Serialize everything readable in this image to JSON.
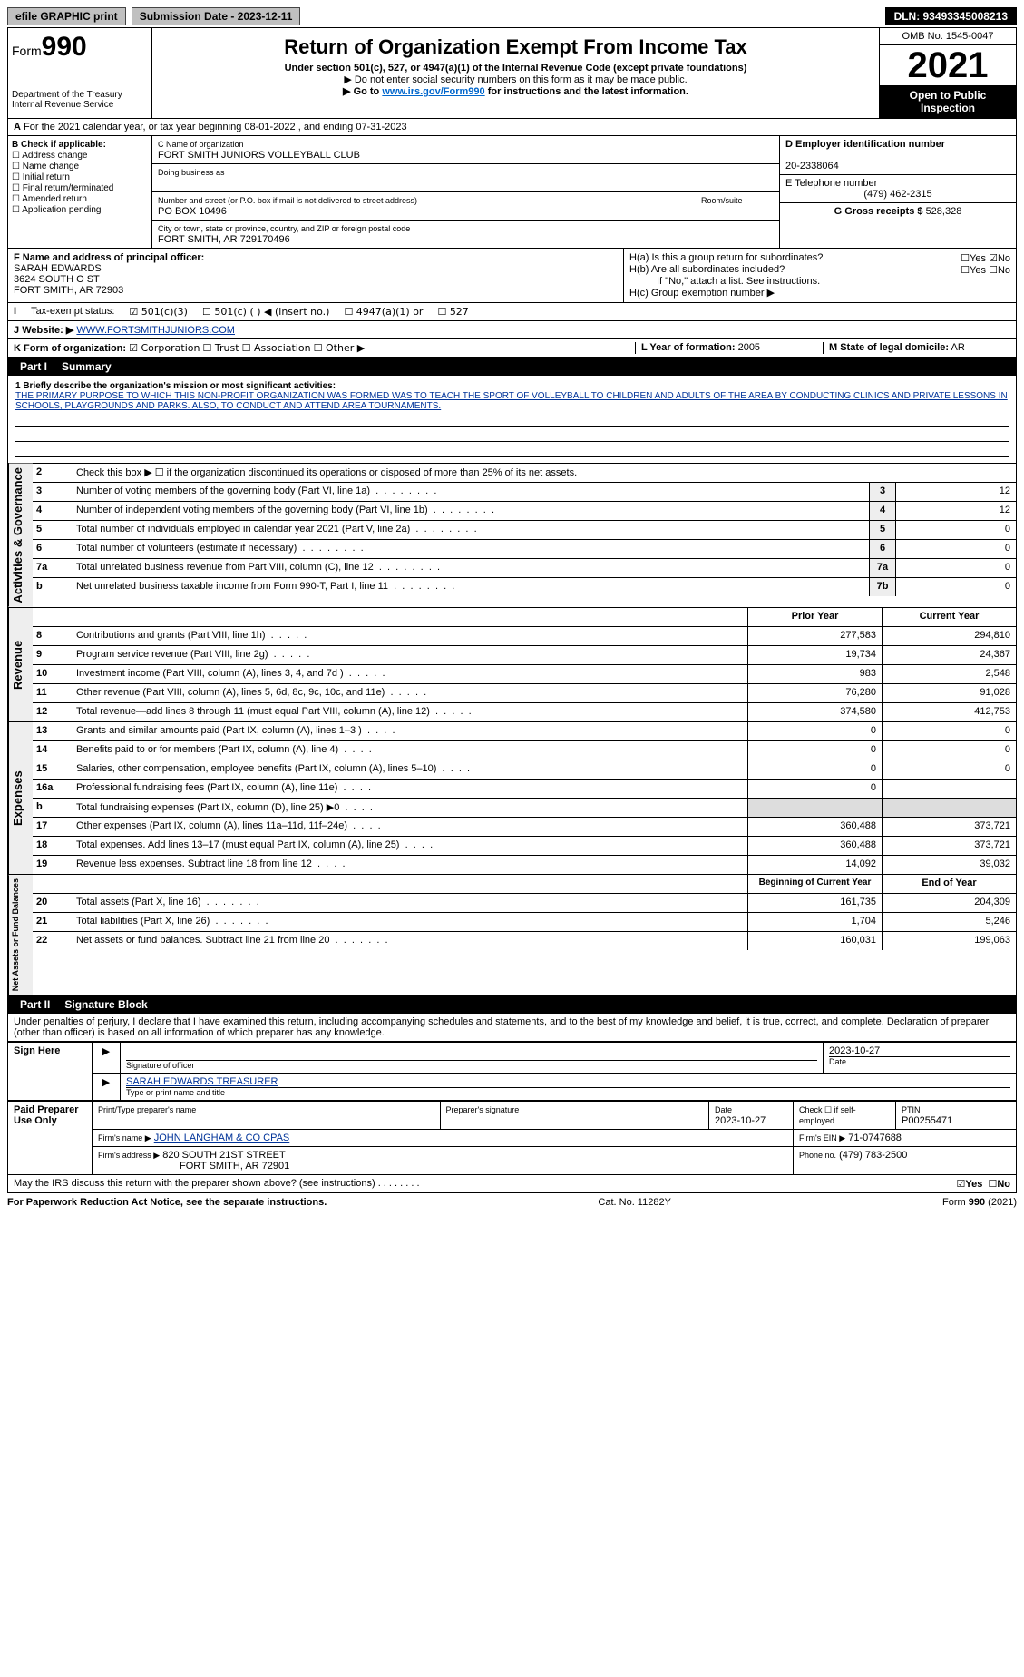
{
  "topbar": {
    "efile": "efile GRAPHIC print",
    "submission": "Submission Date - 2023-12-11",
    "dln": "DLN: 93493345008213"
  },
  "header": {
    "form": "Form",
    "formno": "990",
    "title": "Return of Organization Exempt From Income Tax",
    "sub1": "Under section 501(c), 527, or 4947(a)(1) of the Internal Revenue Code (except private foundations)",
    "sub2": "▶ Do not enter social security numbers on this form as it may be made public.",
    "sub3_pre": "▶ Go to ",
    "sub3_link": "www.irs.gov/Form990",
    "sub3_post": " for instructions and the latest information.",
    "dept": "Department of the Treasury",
    "irs": "Internal Revenue Service",
    "omb": "OMB No. 1545-0047",
    "year": "2021",
    "open": "Open to Public Inspection"
  },
  "rowA": "For the 2021 calendar year, or tax year beginning 08-01-2022    , and ending 07-31-2023",
  "boxB": {
    "label": "B Check if applicable:",
    "opts": [
      "Address change",
      "Name change",
      "Initial return",
      "Final return/terminated",
      "Amended return",
      "Application pending"
    ]
  },
  "boxC": {
    "lbl_name": "C Name of organization",
    "name": "FORT SMITH JUNIORS VOLLEYBALL CLUB",
    "dba_lbl": "Doing business as",
    "addr_lbl": "Number and street (or P.O. box if mail is not delivered to street address)",
    "room_lbl": "Room/suite",
    "addr": "PO BOX 10496",
    "city_lbl": "City or town, state or province, country, and ZIP or foreign postal code",
    "city": "FORT SMITH, AR  729170496"
  },
  "boxD": {
    "lbl": "D Employer identification number",
    "val": "20-2338064"
  },
  "boxE": {
    "lbl": "E Telephone number",
    "val": "(479) 462-2315"
  },
  "boxG": {
    "lbl": "G Gross receipts $",
    "val": "528,328"
  },
  "boxF": {
    "lbl": "F Name and address of principal officer:",
    "name": "SARAH EDWARDS",
    "addr1": "3624 SOUTH O ST",
    "addr2": "FORT SMITH, AR  72903"
  },
  "boxH": {
    "a": "H(a)  Is this a group return for subordinates?",
    "b": "H(b)  Are all subordinates included?",
    "ifno": "If \"No,\" attach a list. See instructions.",
    "c": "H(c)  Group exemption number ▶",
    "yes": "Yes",
    "no": "No"
  },
  "rowI": {
    "lbl": "Tax-exempt status:",
    "o1": "501(c)(3)",
    "o2": "501(c) (   ) ◀ (insert no.)",
    "o3": "4947(a)(1) or",
    "o4": "527"
  },
  "rowJ": {
    "lbl": "Website: ▶",
    "val": "WWW.FORTSMITHJUNIORS.COM"
  },
  "rowK": {
    "lbl": "K Form of organization:",
    "o1": "Corporation",
    "o2": "Trust",
    "o3": "Association",
    "o4": "Other ▶"
  },
  "rowL": {
    "lbl": "L Year of formation:",
    "val": "2005"
  },
  "rowM": {
    "lbl": "M State of legal domicile:",
    "val": "AR"
  },
  "partI": {
    "title": "Part I",
    "label": "Summary",
    "q1_lbl": "1  Briefly describe the organization's mission or most significant activities:",
    "q1_txt": "THE PRIMARY PURPOSE TO WHICH THIS NON-PROFIT ORGANIZATION WAS FORMED WAS TO TEACH THE SPORT OF VOLLEYBALL TO CHILDREN AND ADULTS OF THE AREA BY CONDUCTING CLINICS AND PRIVATE LESSONS IN SCHOOLS, PLAYGROUNDS AND PARKS. ALSO, TO CONDUCT AND ATTEND AREA TOURNAMENTS.",
    "side_ag": "Activities & Governance",
    "side_rev": "Revenue",
    "side_exp": "Expenses",
    "side_na": "Net Assets or Fund Balances",
    "q2": "Check this box ▶ ☐  if the organization discontinued its operations or disposed of more than 25% of its net assets.",
    "lines_ag": [
      {
        "n": "3",
        "d": "Number of voting members of the governing body (Part VI, line 1a)",
        "b": "3",
        "v": "12"
      },
      {
        "n": "4",
        "d": "Number of independent voting members of the governing body (Part VI, line 1b)",
        "b": "4",
        "v": "12"
      },
      {
        "n": "5",
        "d": "Total number of individuals employed in calendar year 2021 (Part V, line 2a)",
        "b": "5",
        "v": "0"
      },
      {
        "n": "6",
        "d": "Total number of volunteers (estimate if necessary)",
        "b": "6",
        "v": "0"
      },
      {
        "n": "7a",
        "d": "Total unrelated business revenue from Part VIII, column (C), line 12",
        "b": "7a",
        "v": "0"
      },
      {
        "n": "b",
        "d": "Net unrelated business taxable income from Form 990-T, Part I, line 11",
        "b": "7b",
        "v": "0"
      }
    ],
    "col_prior": "Prior Year",
    "col_curr": "Current Year",
    "lines_rev": [
      {
        "n": "8",
        "d": "Contributions and grants (Part VIII, line 1h)",
        "p": "277,583",
        "c": "294,810"
      },
      {
        "n": "9",
        "d": "Program service revenue (Part VIII, line 2g)",
        "p": "19,734",
        "c": "24,367"
      },
      {
        "n": "10",
        "d": "Investment income (Part VIII, column (A), lines 3, 4, and 7d )",
        "p": "983",
        "c": "2,548"
      },
      {
        "n": "11",
        "d": "Other revenue (Part VIII, column (A), lines 5, 6d, 8c, 9c, 10c, and 11e)",
        "p": "76,280",
        "c": "91,028"
      },
      {
        "n": "12",
        "d": "Total revenue—add lines 8 through 11 (must equal Part VIII, column (A), line 12)",
        "p": "374,580",
        "c": "412,753"
      }
    ],
    "lines_exp": [
      {
        "n": "13",
        "d": "Grants and similar amounts paid (Part IX, column (A), lines 1–3 )",
        "p": "0",
        "c": "0"
      },
      {
        "n": "14",
        "d": "Benefits paid to or for members (Part IX, column (A), line 4)",
        "p": "0",
        "c": "0"
      },
      {
        "n": "15",
        "d": "Salaries, other compensation, employee benefits (Part IX, column (A), lines 5–10)",
        "p": "0",
        "c": "0"
      },
      {
        "n": "16a",
        "d": "Professional fundraising fees (Part IX, column (A), line 11e)",
        "p": "0",
        "c": ""
      },
      {
        "n": "b",
        "d": "Total fundraising expenses (Part IX, column (D), line 25) ▶0",
        "p": "",
        "c": "",
        "shade": true
      },
      {
        "n": "17",
        "d": "Other expenses (Part IX, column (A), lines 11a–11d, 11f–24e)",
        "p": "360,488",
        "c": "373,721"
      },
      {
        "n": "18",
        "d": "Total expenses. Add lines 13–17 (must equal Part IX, column (A), line 25)",
        "p": "360,488",
        "c": "373,721"
      },
      {
        "n": "19",
        "d": "Revenue less expenses. Subtract line 18 from line 12",
        "p": "14,092",
        "c": "39,032"
      }
    ],
    "col_beg": "Beginning of Current Year",
    "col_end": "End of Year",
    "lines_na": [
      {
        "n": "20",
        "d": "Total assets (Part X, line 16)",
        "p": "161,735",
        "c": "204,309"
      },
      {
        "n": "21",
        "d": "Total liabilities (Part X, line 26)",
        "p": "1,704",
        "c": "5,246"
      },
      {
        "n": "22",
        "d": "Net assets or fund balances. Subtract line 21 from line 20",
        "p": "160,031",
        "c": "199,063"
      }
    ]
  },
  "partII": {
    "title": "Part II",
    "label": "Signature Block",
    "decl": "Under penalties of perjury, I declare that I have examined this return, including accompanying schedules and statements, and to the best of my knowledge and belief, it is true, correct, and complete. Declaration of preparer (other than officer) is based on all information of which preparer has any knowledge.",
    "sign_here": "Sign Here",
    "sig_officer": "Signature of officer",
    "date": "Date",
    "sig_date_val": "2023-10-27",
    "typed": "SARAH EDWARDS  TREASURER",
    "typed_lbl": "Type or print name and title",
    "paid": "Paid Preparer Use Only",
    "prep_name_lbl": "Print/Type preparer's name",
    "prep_sig_lbl": "Preparer's signature",
    "prep_date_lbl": "Date",
    "prep_date": "2023-10-27",
    "check_lbl": "Check ☐ if self-employed",
    "ptin_lbl": "PTIN",
    "ptin": "P00255471",
    "firm_lbl": "Firm's name    ▶",
    "firm": "JOHN LANGHAM & CO CPAS",
    "ein_lbl": "Firm's EIN ▶",
    "ein": "71-0747688",
    "addr_lbl": "Firm's address ▶",
    "addr": "820 SOUTH 21ST STREET",
    "addr2": "FORT SMITH, AR  72901",
    "phone_lbl": "Phone no.",
    "phone": "(479) 783-2500",
    "may": "May the IRS discuss this return with the preparer shown above? (see instructions)",
    "may_yes": "Yes",
    "may_no": "No"
  },
  "footer": {
    "l": "For Paperwork Reduction Act Notice, see the separate instructions.",
    "c": "Cat. No. 11282Y",
    "r": "Form 990 (2021)"
  }
}
